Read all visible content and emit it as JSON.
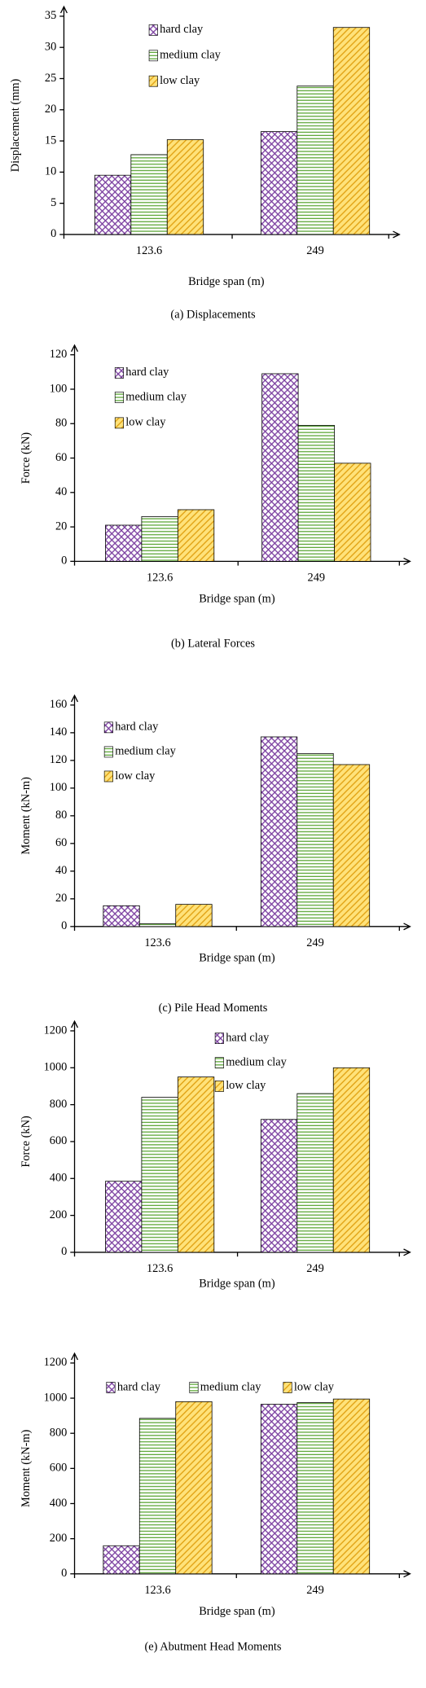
{
  "chart_data": [
    {
      "type": "bar",
      "title": "(a) Displacements",
      "xlabel": "Bridge span (m)",
      "ylabel": "Displacement (mm)",
      "categories": [
        "123.6",
        "249"
      ],
      "series": [
        {
          "name": "hard clay",
          "color": "#7b3fa0",
          "values": [
            9.5,
            16.5
          ]
        },
        {
          "name": "medium clay",
          "color": "#5fa83a",
          "values": [
            12.8,
            23.8
          ]
        },
        {
          "name": "low clay",
          "color": "#e0a010",
          "values": [
            15.2,
            33.2
          ]
        }
      ],
      "ylim": [
        0,
        35
      ],
      "yticks": [
        0,
        5,
        10,
        15,
        20,
        25,
        30,
        35
      ]
    },
    {
      "type": "bar",
      "title": "(b) Lateral Forces",
      "xlabel": "Bridge span (m)",
      "ylabel": "Force (kN)",
      "categories": [
        "123.6",
        "249"
      ],
      "series": [
        {
          "name": "hard clay",
          "color": "#7b3fa0",
          "values": [
            21,
            109
          ]
        },
        {
          "name": "medium clay",
          "color": "#5fa83a",
          "values": [
            26,
            79
          ]
        },
        {
          "name": "low clay",
          "color": "#e0a010",
          "values": [
            30,
            57
          ]
        }
      ],
      "ylim": [
        0,
        120
      ],
      "yticks": [
        0,
        20,
        40,
        60,
        80,
        100,
        120
      ]
    },
    {
      "type": "bar",
      "title": "(c) Pile Head Moments",
      "xlabel": "Bridge span (m)",
      "ylabel": "Moment (kN-m)",
      "categories": [
        "123.6",
        "249"
      ],
      "series": [
        {
          "name": "hard clay",
          "color": "#7b3fa0",
          "values": [
            15,
            137
          ]
        },
        {
          "name": "medium clay",
          "color": "#5fa83a",
          "values": [
            2,
            125
          ]
        },
        {
          "name": "low clay",
          "color": "#e0a010",
          "values": [
            16,
            117
          ]
        }
      ],
      "ylim": [
        0,
        160
      ],
      "yticks": [
        0,
        20,
        40,
        60,
        80,
        100,
        120,
        140,
        160
      ]
    },
    {
      "type": "bar",
      "xlabel": "Bridge span (m)",
      "ylabel": "Force (kN)",
      "categories": [
        "123.6",
        "249"
      ],
      "series": [
        {
          "name": "hard clay",
          "color": "#7b3fa0",
          "values": [
            385,
            720
          ]
        },
        {
          "name": "medium clay",
          "color": "#5fa83a",
          "values": [
            840,
            860
          ]
        },
        {
          "name": "low clay",
          "color": "#e0a010",
          "values": [
            950,
            1000
          ]
        }
      ],
      "ylim": [
        0,
        1200
      ],
      "yticks": [
        0,
        200,
        400,
        600,
        800,
        1000,
        1200
      ]
    },
    {
      "type": "bar",
      "title": "(e) Abutment Head Moments",
      "xlabel": "Bridge span (m)",
      "ylabel": "Moment (kN-m)",
      "categories": [
        "123.6",
        "249"
      ],
      "series": [
        {
          "name": "hard clay",
          "color": "#7b3fa0",
          "values": [
            160,
            965
          ]
        },
        {
          "name": "medium clay",
          "color": "#5fa83a",
          "values": [
            885,
            975
          ]
        },
        {
          "name": "low clay",
          "color": "#e0a010",
          "values": [
            980,
            995
          ]
        }
      ],
      "ylim": [
        0,
        1200
      ],
      "yticks": [
        0,
        200,
        400,
        600,
        800,
        1000,
        1200
      ]
    }
  ]
}
